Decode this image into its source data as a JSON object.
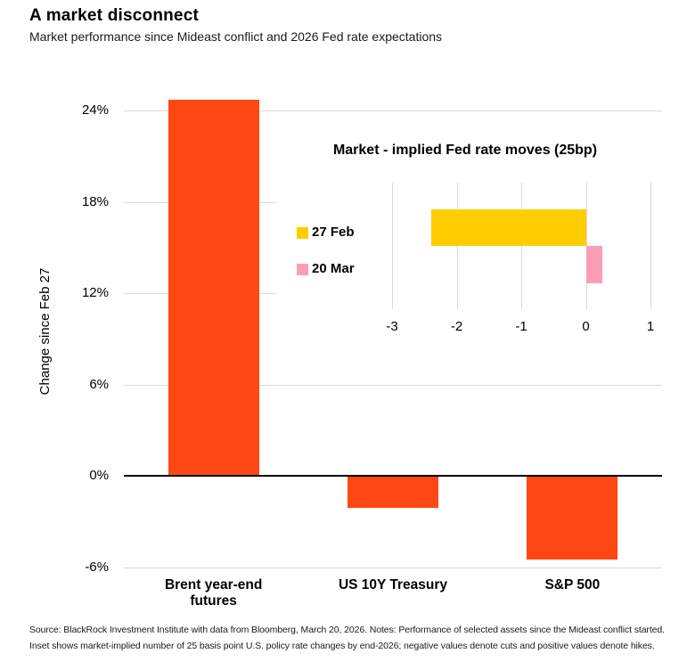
{
  "header": {
    "title": "A market disconnect",
    "subtitle": "Market performance since Mideast conflict and 2026 Fed rate expectations"
  },
  "chart_data": [
    {
      "type": "bar",
      "title": "",
      "ylabel": "Change since Feb 27",
      "categories": [
        "Brent year-end\nfutures",
        "US 10Y Treasury",
        "S&P 500"
      ],
      "values": [
        24.7,
        -2.1,
        -5.5
      ],
      "yticks": [
        24,
        18,
        12,
        6,
        0,
        -6
      ],
      "ytick_labels": [
        "24%",
        "18%",
        "12%",
        "6%",
        "0%",
        "-6%"
      ],
      "ylim": [
        -8,
        26
      ],
      "grid": true,
      "bar_color": "#FF4713",
      "grid_color": "#d9d9d9",
      "zero_axis_color": "#000000"
    },
    {
      "type": "bar-horizontal",
      "title": "Market - implied Fed rate moves (25bp)",
      "series": [
        {
          "name": "27 Feb",
          "value": -2.4,
          "color": "#FFCD00"
        },
        {
          "name": "20 Mar",
          "value": 0.25,
          "color": "#FB9EB5"
        }
      ],
      "xticks": [
        -3,
        -2,
        -1,
        0,
        1
      ],
      "xtick_labels": [
        "-3",
        "-2",
        "-1",
        "0",
        "1"
      ],
      "xlim": [
        -3.5,
        1.5
      ],
      "grid": true,
      "grid_color": "#d9d9d9",
      "legend_position": "left"
    }
  ],
  "footer": {
    "source": "Source: BlackRock Investment Institute with data from Bloomberg, March 20, 2026. Notes: Performance of selected assets since the Mideast conflict started. Inset shows market-implied number of 25 basis point U.S. policy rate changes by end-2026; negative values denote cuts and positive values denote hikes."
  }
}
